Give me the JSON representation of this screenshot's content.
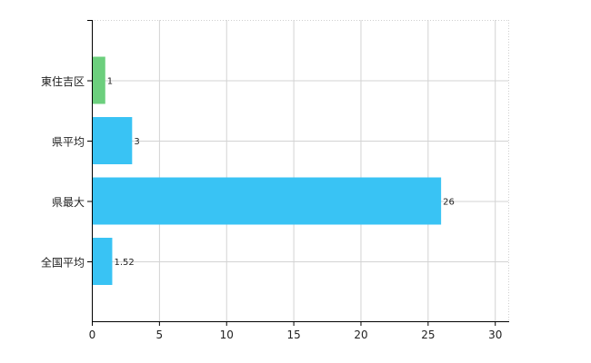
{
  "chart_data": {
    "type": "bar",
    "orientation": "horizontal",
    "categories": [
      "東住吉区",
      "県平均",
      "県最大",
      "全国平均"
    ],
    "values": [
      1,
      3,
      26,
      1.52
    ],
    "data_labels": [
      "1",
      "3",
      "26",
      "1.52"
    ],
    "bar_colors": [
      "#6ccf7d",
      "#39c3f4",
      "#39c3f4",
      "#39c3f4"
    ],
    "xlim": [
      0,
      31
    ],
    "xticks": [
      0,
      5,
      10,
      15,
      20,
      25,
      30
    ],
    "grid": true,
    "legend": "none"
  }
}
